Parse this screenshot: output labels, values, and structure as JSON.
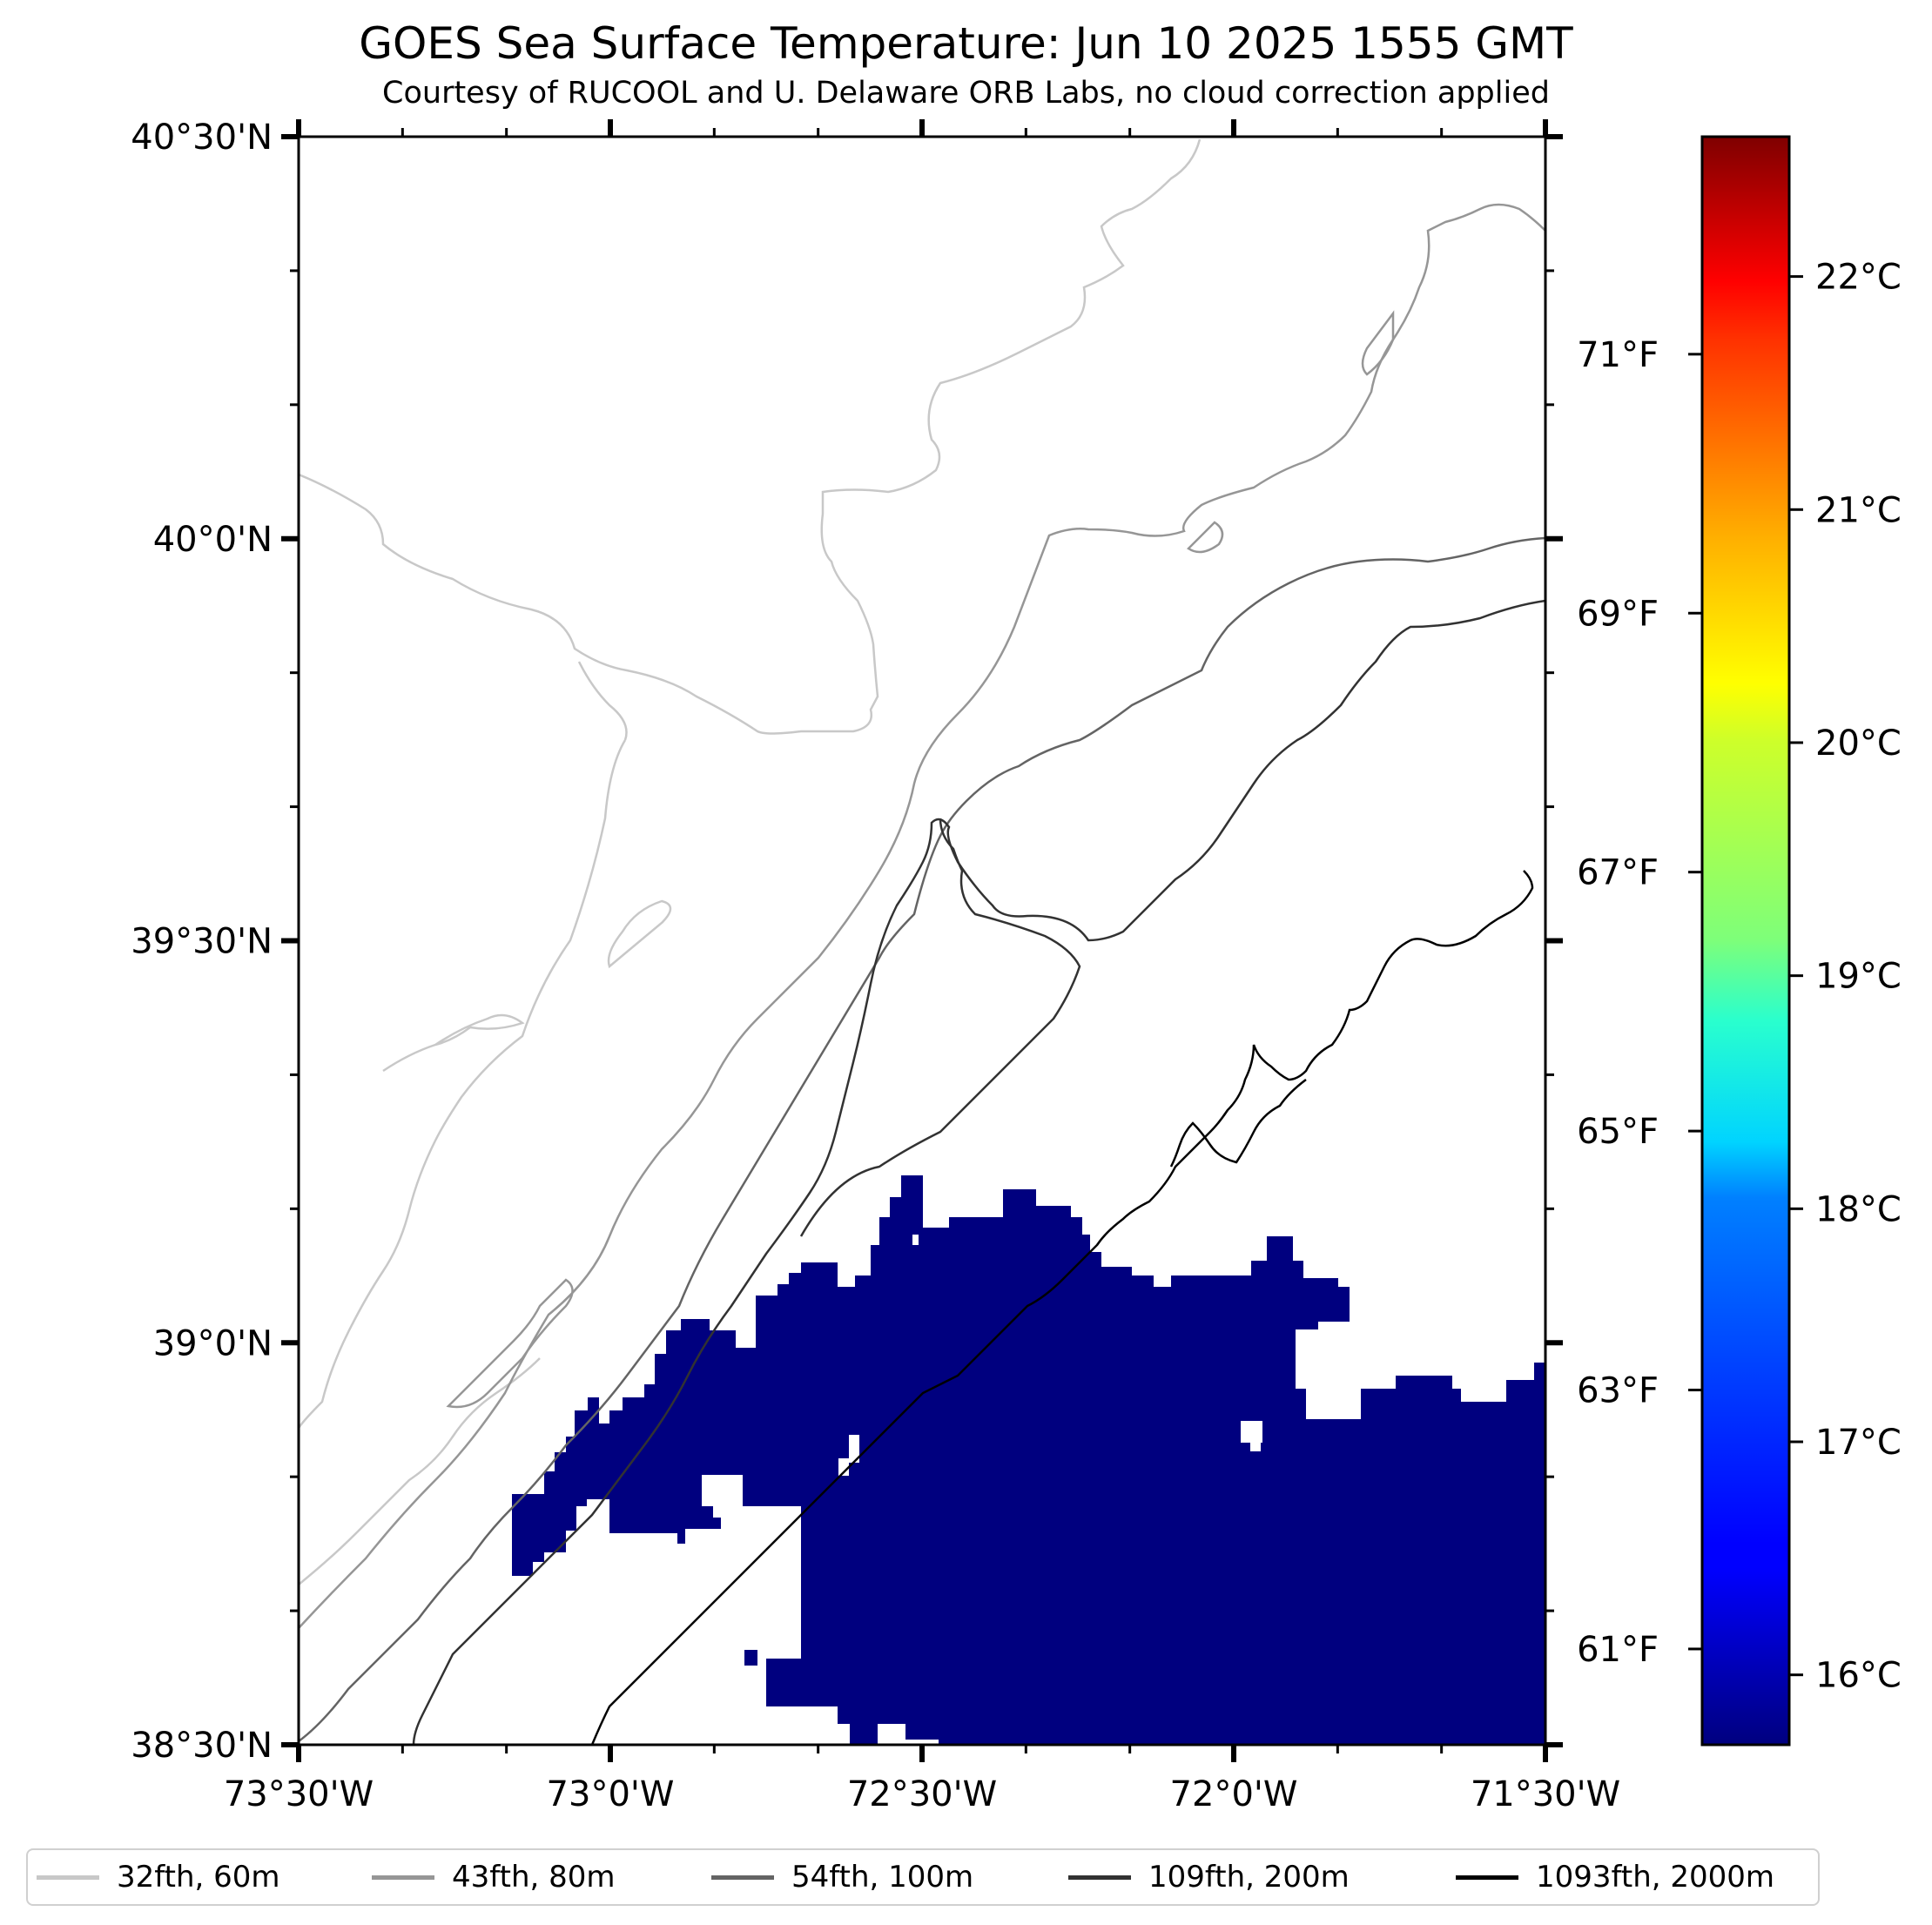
{
  "title": "GOES Sea Surface Temperature: Jun 10 2025 1555 GMT",
  "subtitle": "Courtesy of RUCOOL and U. Delaware ORB Labs, no cloud correction applied",
  "map": {
    "lat_labels": [
      "40°30'N",
      "40°0'N",
      "39°30'N",
      "39°0'N",
      "38°30'N"
    ],
    "lon_labels": [
      "73°30'W",
      "73°0'W",
      "72°30'W",
      "72°0'W",
      "71°30'W"
    ],
    "lat_range": [
      38.5,
      40.5
    ],
    "lon_range": [
      -73.5,
      -71.5
    ],
    "sst_patch_color": "#00007f",
    "sst_patch_value_c": 16
  },
  "colorbar": {
    "celsius_labels": [
      "22°C",
      "21°C",
      "20°C",
      "19°C",
      "18°C",
      "17°C",
      "16°C"
    ],
    "fahrenheit_labels": [
      "71°F",
      "69°F",
      "67°F",
      "65°F",
      "63°F",
      "61°F"
    ],
    "colormap": "jet",
    "range_c": [
      15.7,
      22.6
    ]
  },
  "legend": {
    "items": [
      {
        "label": "32fth, 60m",
        "color": "#c8c8c8"
      },
      {
        "label": "43fth, 80m",
        "color": "#969696"
      },
      {
        "label": "54fth, 100m",
        "color": "#646464"
      },
      {
        "label": "109fth, 200m",
        "color": "#323232"
      },
      {
        "label": "1093fth, 2000m",
        "color": "#000000"
      }
    ]
  }
}
